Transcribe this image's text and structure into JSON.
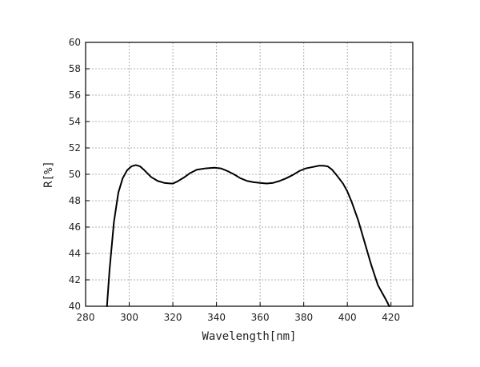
{
  "chart_data": {
    "type": "line",
    "title": "",
    "xlabel": "Wavelength[nm]",
    "ylabel": "R[%]",
    "xlim": [
      280,
      430
    ],
    "ylim": [
      40,
      60
    ],
    "xticks": [
      280,
      300,
      320,
      340,
      360,
      380,
      400,
      420
    ],
    "yticks": [
      40,
      42,
      44,
      46,
      48,
      50,
      52,
      54,
      56,
      58,
      60
    ],
    "grid": true,
    "legend": "none",
    "colors": {
      "line": "#000000",
      "grid": "#b0b0b0",
      "axis": "#000000"
    },
    "series": [
      {
        "x": [
          289.8,
          291,
          293,
          295,
          297,
          299,
          301,
          303,
          305,
          307,
          310,
          313,
          316,
          319,
          320,
          322,
          325,
          328,
          331,
          335,
          339,
          342,
          345,
          348,
          351,
          354,
          357,
          360,
          363,
          366,
          369,
          372,
          375,
          378,
          381,
          384,
          387,
          389,
          391,
          393,
          395,
          398,
          400,
          402,
          405,
          408,
          411,
          414,
          416,
          418,
          419.2
        ],
        "y": [
          40.0,
          42.8,
          46.4,
          48.6,
          49.7,
          50.3,
          50.6,
          50.7,
          50.6,
          50.3,
          49.8,
          49.5,
          49.35,
          49.3,
          49.3,
          49.45,
          49.75,
          50.1,
          50.35,
          50.45,
          50.5,
          50.45,
          50.25,
          50.0,
          49.7,
          49.5,
          49.4,
          49.35,
          49.3,
          49.35,
          49.5,
          49.7,
          49.95,
          50.25,
          50.45,
          50.55,
          50.65,
          50.65,
          50.6,
          50.35,
          49.95,
          49.3,
          48.7,
          47.9,
          46.5,
          44.8,
          43.1,
          41.6,
          41.0,
          40.4,
          40.0
        ]
      }
    ]
  }
}
